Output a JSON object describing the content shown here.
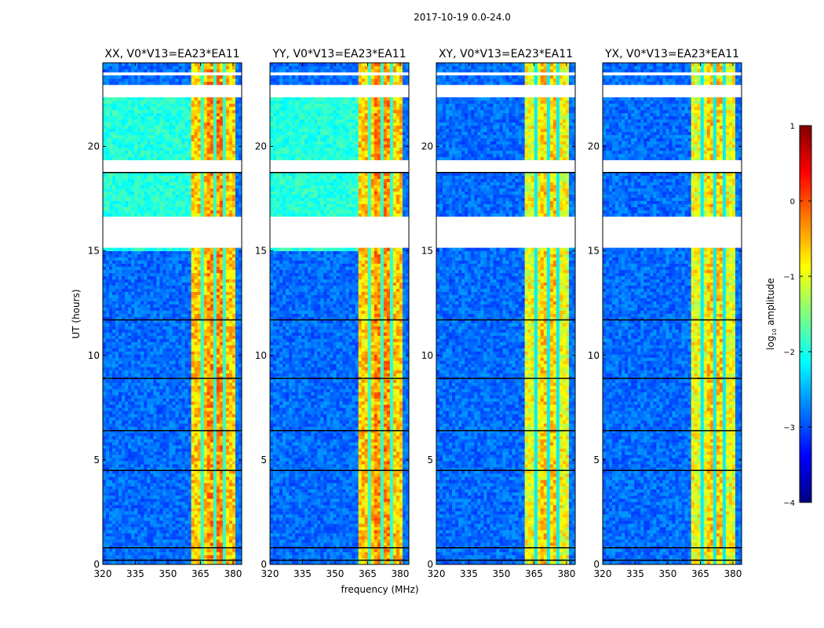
{
  "chart_data": {
    "type": "heatmap",
    "suptitle": "2017-10-19 0.0-24.0",
    "xlabel": "frequency (MHz)",
    "ylabel": "UT (hours)",
    "xlim": [
      320,
      384
    ],
    "ylim": [
      0,
      24
    ],
    "xticks": [
      320,
      335,
      350,
      365,
      380
    ],
    "yticks": [
      0,
      5,
      10,
      15,
      20
    ],
    "panels": [
      {
        "title": "XX, V0*V13=EA23*EA11"
      },
      {
        "title": "YY, V0*V13=EA23*EA11"
      },
      {
        "title": "XY, V0*V13=EA23*EA11"
      },
      {
        "title": "YX, V0*V13=EA23*EA11"
      }
    ],
    "colorbar": {
      "label_prefix": "log",
      "label_sub": "10",
      "label_suffix": " amplitude",
      "range": [
        -4,
        1
      ],
      "ticks": [
        1,
        0,
        -1,
        -2,
        -3,
        -4
      ],
      "tick_labels": [
        "1",
        "0",
        "−1",
        "−2",
        "−3",
        "−4"
      ],
      "colormap": "jet"
    },
    "band": {
      "strong_start_mhz": 361,
      "strong_end_mhz": 380.5,
      "subband_edges_mhz": [
        366,
        371,
        376
      ]
    },
    "gaps_hours": [
      [
        23.4,
        23.6
      ],
      [
        22.4,
        22.9
      ],
      [
        18.7,
        19.4
      ],
      [
        16.1,
        16.7
      ],
      [
        15.2,
        16.0
      ],
      [
        6.4,
        6.5
      ]
    ],
    "flag_lines_hours": [
      0.2,
      0.8,
      4.5,
      6.4,
      8.9,
      11.7,
      18.75
    ]
  }
}
